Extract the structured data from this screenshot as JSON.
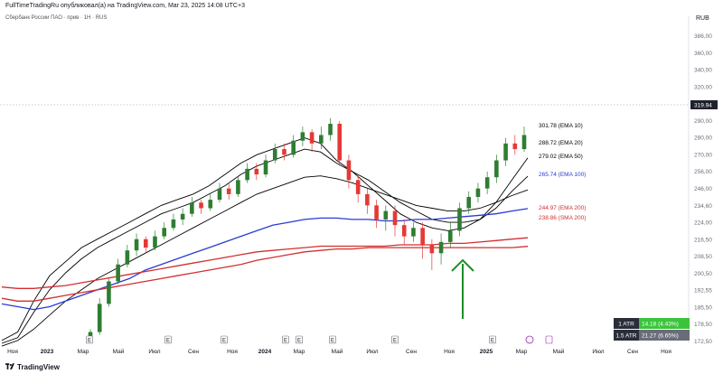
{
  "header": {
    "text": "FullTimeTradingRu опубликовал(а) на TradingView.com, Mar 23, 2025 14:08 UTC+3"
  },
  "symbol": {
    "text": "Сбербанк России ПАО · прив · 1Н · RUS"
  },
  "footer": {
    "brand": "TradingView"
  },
  "colors": {
    "up": "#2e7d32",
    "down": "#e53935",
    "ema10": "#000000",
    "ema100": "#2b3ad4",
    "sma200": "#d32f2f",
    "arrow": "#1b8f2a"
  },
  "chart_data": {
    "type": "candlestick",
    "currency": "RUB",
    "last_price": "319.94",
    "y_ticks": [
      "386,00",
      "360,00",
      "340,00",
      "320,00",
      "306,00",
      "290,00",
      "280,00",
      "270,00",
      "256,00",
      "246,00",
      "234,60",
      "224,00",
      "216,50",
      "208,50",
      "200,50",
      "192,55",
      "185,50",
      "178,50",
      "172,50"
    ],
    "x_ticks": [
      "Ноя",
      "2023",
      "Мар",
      "Май",
      "Июл",
      "Сен",
      "Ноя",
      "2024",
      "Мар",
      "Май",
      "Июл",
      "Сен",
      "Ноя",
      "2025",
      "Мар",
      "Май",
      "Июл",
      "Сен",
      "Ноя"
    ],
    "indicator_labels": [
      {
        "text": "301.78 (EMA 10)",
        "color": "#000000"
      },
      {
        "text": "288.72 (EMA 20)",
        "color": "#000000"
      },
      {
        "text": "279.02 (EMA 50)",
        "color": "#000000"
      },
      {
        "text": "265.74 (EMA 100)",
        "color": "#2b3ad4"
      },
      {
        "text": "244.97 (EMA 200)",
        "color": "#d32f2f"
      },
      {
        "text": "238.86 (SMA 200)",
        "color": "#d32f2f"
      }
    ],
    "atr": [
      {
        "label": "1 ATR",
        "value": "14.18 (4.43%)",
        "bg": "#3cc43c"
      },
      {
        "label": "1.5 ATR",
        "value": "21.27 (6.65%)",
        "bg": "#6a6d78"
      }
    ],
    "event_marks": [
      "E",
      "E",
      "E",
      "E",
      "E",
      "E",
      "E",
      "E"
    ],
    "annotation": "green up arrow under late-2024 low",
    "series": [
      {
        "name": "EMA 10",
        "y": [
          172,
          178,
          200,
          218,
          228,
          238,
          244,
          250,
          256,
          262,
          268,
          272,
          276,
          282,
          290,
          298,
          304,
          308,
          312,
          316,
          312,
          300,
          292,
          282,
          272,
          262,
          256,
          252,
          250,
          252,
          258,
          270,
          286,
          301.78
        ]
      },
      {
        "name": "EMA 20",
        "y": [
          170,
          174,
          192,
          208,
          220,
          230,
          238,
          244,
          250,
          256,
          262,
          266,
          270,
          276,
          282,
          290,
          296,
          300,
          304,
          308,
          306,
          298,
          292,
          286,
          278,
          270,
          264,
          258,
          256,
          256,
          258,
          266,
          278,
          288.72
        ]
      },
      {
        "name": "EMA 50",
        "y": [
          168,
          172,
          180,
          190,
          200,
          208,
          216,
          222,
          228,
          234,
          240,
          246,
          252,
          258,
          264,
          270,
          276,
          280,
          284,
          288,
          289,
          287,
          284,
          280,
          276,
          272,
          268,
          266,
          264,
          264,
          266,
          270,
          275,
          279.02
        ]
      },
      {
        "name": "EMA 100",
        "y": [
          198,
          196,
          194,
          196,
          200,
          204,
          208,
          212,
          216,
          222,
          226,
          230,
          234,
          238,
          242,
          246,
          250,
          254,
          256,
          258,
          259,
          259,
          258,
          258,
          257,
          257,
          258,
          258,
          259,
          260,
          261,
          262,
          264,
          265.74
        ]
      },
      {
        "name": "EMA 200",
        "y": [
          210,
          209,
          209,
          210,
          211,
          213,
          215,
          217,
          219,
          221,
          223,
          225,
          227,
          229,
          231,
          233,
          235,
          236,
          237,
          238,
          239,
          239,
          239,
          239,
          239,
          240,
          240,
          240,
          241,
          241,
          242,
          243,
          244,
          244.97
        ]
      },
      {
        "name": "SMA 200",
        "y": [
          202,
          200,
          200,
          202,
          204,
          206,
          208,
          210,
          212,
          214,
          216,
          218,
          220,
          222,
          224,
          226,
          229,
          231,
          233,
          235,
          236,
          237,
          237,
          238,
          238,
          238,
          238,
          238,
          238,
          238,
          238,
          238,
          238,
          238.86
        ]
      }
    ],
    "candles": [
      {
        "o": 172,
        "c": 178,
        "h": 180,
        "l": 170
      },
      {
        "o": 178,
        "c": 198,
        "h": 202,
        "l": 176
      },
      {
        "o": 198,
        "c": 214,
        "h": 216,
        "l": 196
      },
      {
        "o": 214,
        "c": 226,
        "h": 230,
        "l": 212
      },
      {
        "o": 226,
        "c": 236,
        "h": 240,
        "l": 224
      },
      {
        "o": 236,
        "c": 244,
        "h": 248,
        "l": 232
      },
      {
        "o": 244,
        "c": 238,
        "h": 246,
        "l": 234
      },
      {
        "o": 238,
        "c": 246,
        "h": 250,
        "l": 236
      },
      {
        "o": 246,
        "c": 252,
        "h": 256,
        "l": 244
      },
      {
        "o": 252,
        "c": 258,
        "h": 262,
        "l": 250
      },
      {
        "o": 258,
        "c": 262,
        "h": 266,
        "l": 254
      },
      {
        "o": 262,
        "c": 270,
        "h": 274,
        "l": 260
      },
      {
        "o": 270,
        "c": 266,
        "h": 272,
        "l": 262
      },
      {
        "o": 266,
        "c": 272,
        "h": 276,
        "l": 264
      },
      {
        "o": 272,
        "c": 280,
        "h": 284,
        "l": 270
      },
      {
        "o": 280,
        "c": 276,
        "h": 284,
        "l": 272
      },
      {
        "o": 276,
        "c": 286,
        "h": 288,
        "l": 274
      },
      {
        "o": 286,
        "c": 294,
        "h": 298,
        "l": 284
      },
      {
        "o": 294,
        "c": 290,
        "h": 298,
        "l": 286
      },
      {
        "o": 290,
        "c": 300,
        "h": 304,
        "l": 288
      },
      {
        "o": 300,
        "c": 308,
        "h": 312,
        "l": 298
      },
      {
        "o": 308,
        "c": 304,
        "h": 312,
        "l": 300
      },
      {
        "o": 304,
        "c": 314,
        "h": 318,
        "l": 302
      },
      {
        "o": 314,
        "c": 320,
        "h": 324,
        "l": 310
      },
      {
        "o": 320,
        "c": 312,
        "h": 322,
        "l": 306
      },
      {
        "o": 312,
        "c": 318,
        "h": 324,
        "l": 308
      },
      {
        "o": 318,
        "c": 326,
        "h": 330,
        "l": 314
      },
      {
        "o": 326,
        "c": 300,
        "h": 328,
        "l": 296
      },
      {
        "o": 300,
        "c": 286,
        "h": 304,
        "l": 280
      },
      {
        "o": 286,
        "c": 276,
        "h": 290,
        "l": 270
      },
      {
        "o": 276,
        "c": 268,
        "h": 280,
        "l": 262
      },
      {
        "o": 268,
        "c": 258,
        "h": 272,
        "l": 252
      },
      {
        "o": 258,
        "c": 264,
        "h": 268,
        "l": 250
      },
      {
        "o": 264,
        "c": 254,
        "h": 268,
        "l": 246
      },
      {
        "o": 254,
        "c": 246,
        "h": 258,
        "l": 240
      },
      {
        "o": 246,
        "c": 252,
        "h": 256,
        "l": 242
      },
      {
        "o": 252,
        "c": 240,
        "h": 256,
        "l": 230
      },
      {
        "o": 240,
        "c": 234,
        "h": 244,
        "l": 222
      },
      {
        "o": 234,
        "c": 242,
        "h": 248,
        "l": 226
      },
      {
        "o": 242,
        "c": 250,
        "h": 256,
        "l": 238
      },
      {
        "o": 250,
        "c": 266,
        "h": 270,
        "l": 246
      },
      {
        "o": 266,
        "c": 274,
        "h": 278,
        "l": 262
      },
      {
        "o": 274,
        "c": 280,
        "h": 284,
        "l": 270
      },
      {
        "o": 280,
        "c": 288,
        "h": 292,
        "l": 276
      },
      {
        "o": 288,
        "c": 300,
        "h": 304,
        "l": 284
      },
      {
        "o": 300,
        "c": 312,
        "h": 316,
        "l": 296
      },
      {
        "o": 312,
        "c": 308,
        "h": 318,
        "l": 304
      },
      {
        "o": 308,
        "c": 318,
        "h": 324,
        "l": 306
      }
    ]
  }
}
